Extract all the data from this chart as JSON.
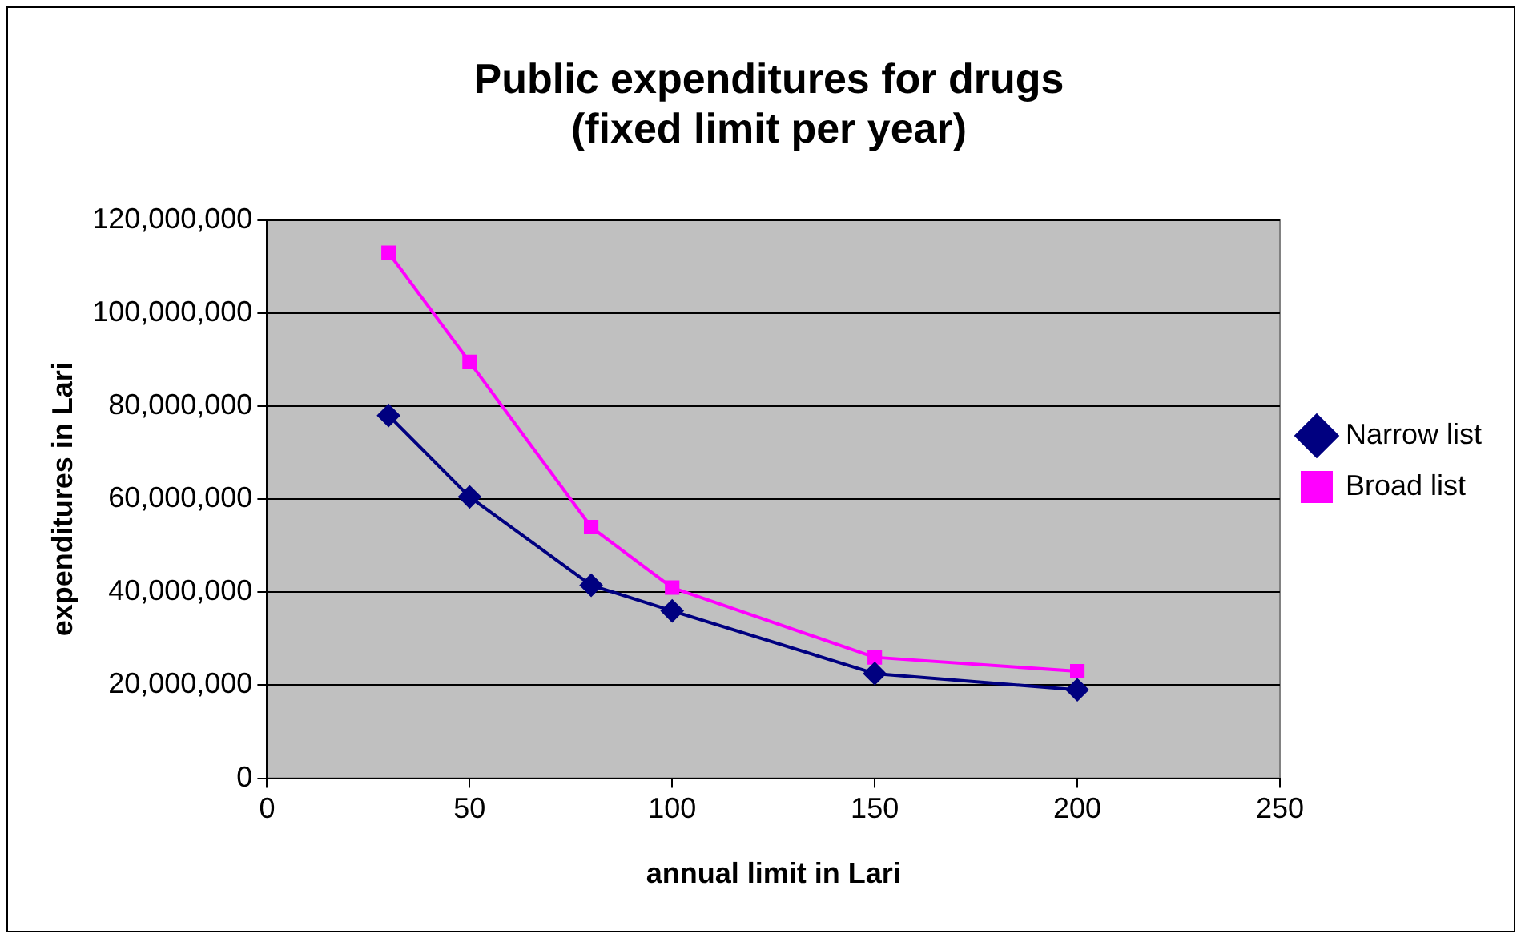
{
  "chart_data": {
    "type": "line",
    "title": "Public expenditures for drugs\n(fixed limit per year)",
    "xlabel": "annual limit in Lari",
    "ylabel": "expenditures in Lari",
    "x": [
      30,
      50,
      80,
      100,
      150,
      200
    ],
    "series": [
      {
        "name": "Narrow list",
        "color": "#000080",
        "marker": "diamond",
        "values": [
          78000000,
          60500000,
          41500000,
          36000000,
          22500000,
          19000000
        ]
      },
      {
        "name": "Broad list",
        "color": "#ff00ff",
        "marker": "square",
        "values": [
          113000000,
          89500000,
          54000000,
          41000000,
          26000000,
          23000000
        ]
      }
    ],
    "xlim": [
      0,
      250
    ],
    "xticks": [
      0,
      50,
      100,
      150,
      200,
      250
    ],
    "ylim": [
      0,
      120000000
    ],
    "yticks": [
      0,
      {
        "value": 20000000,
        "label": "20,000,000"
      },
      {
        "value": 40000000,
        "label": "40,000,000"
      },
      {
        "value": 60000000,
        "label": "60,000,000"
      },
      {
        "value": 80000000,
        "label": "80,000,000"
      },
      {
        "value": 100000000,
        "label": "100,000,000"
      },
      {
        "value": 120000000,
        "label": "120,000,000"
      }
    ],
    "grid": "y",
    "legend": "right",
    "line_style": "solid"
  }
}
